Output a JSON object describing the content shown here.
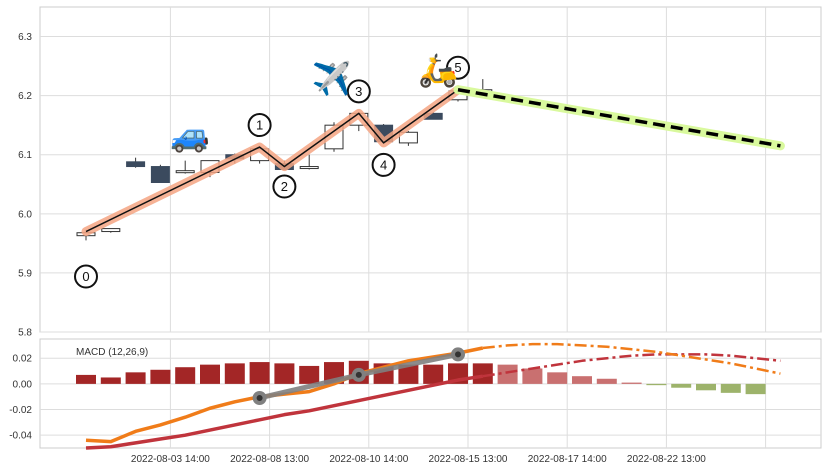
{
  "chart_data": [
    {
      "type": "candlestick",
      "ylim": [
        5.8,
        6.35
      ],
      "y_ticks": [
        5.8,
        5.9,
        6.0,
        6.1,
        6.2,
        6.3
      ],
      "grid": true,
      "candles": [
        {
          "i": 0,
          "open": 5.963,
          "high": 5.968,
          "low": 5.955,
          "close": 5.968
        },
        {
          "i": 1,
          "open": 5.97,
          "high": 5.975,
          "low": 5.968,
          "close": 5.975
        },
        {
          "i": 2,
          "open": 6.088,
          "high": 6.095,
          "low": 6.078,
          "close": 6.08
        },
        {
          "i": 3,
          "open": 6.08,
          "high": 6.083,
          "low": 6.053,
          "close": 6.053
        },
        {
          "i": 4,
          "open": 6.073,
          "high": 6.09,
          "low": 6.068,
          "close": 6.073
        },
        {
          "i": 5,
          "open": 6.07,
          "high": 6.09,
          "low": 6.062,
          "close": 6.09
        },
        {
          "i": 6,
          "open": 6.1,
          "high": 6.102,
          "low": 6.085,
          "close": 6.093
        },
        {
          "i": 7,
          "open": 6.09,
          "high": 6.114,
          "low": 6.085,
          "close": 6.11
        },
        {
          "i": 8,
          "open": 6.085,
          "high": 6.09,
          "low": 6.075,
          "close": 6.075
        },
        {
          "i": 9,
          "open": 6.08,
          "high": 6.1,
          "low": 6.075,
          "close": 6.08
        },
        {
          "i": 10,
          "open": 6.11,
          "high": 6.155,
          "low": 6.105,
          "close": 6.15
        },
        {
          "i": 11,
          "open": 6.15,
          "high": 6.172,
          "low": 6.14,
          "close": 6.17
        },
        {
          "i": 12,
          "open": 6.15,
          "high": 6.152,
          "low": 6.12,
          "close": 6.122
        },
        {
          "i": 13,
          "open": 6.12,
          "high": 6.14,
          "low": 6.115,
          "close": 6.138
        },
        {
          "i": 14,
          "open": 6.17,
          "high": 6.172,
          "low": 6.16,
          "close": 6.16
        },
        {
          "i": 15,
          "open": 6.193,
          "high": 6.215,
          "low": 6.19,
          "close": 6.208
        },
        {
          "i": 16,
          "open": 6.205,
          "high": 6.228,
          "low": 6.2,
          "close": 6.21
        }
      ],
      "wave_points": [
        {
          "label": "0",
          "i": 0,
          "price": 5.97
        },
        {
          "label": "1",
          "i": 7,
          "price": 6.113
        },
        {
          "label": "2",
          "i": 8,
          "price": 6.08
        },
        {
          "label": "3",
          "i": 11,
          "price": 6.17
        },
        {
          "label": "4",
          "i": 12,
          "price": 6.12
        },
        {
          "label": "5",
          "i": 15,
          "price": 6.21
        }
      ],
      "projection": {
        "from_i": 15,
        "from_price": 6.21,
        "to_i": 28,
        "to_price": 6.115
      },
      "icons": [
        {
          "name": "car-icon",
          "glyph": "🚙",
          "i": 4.2,
          "price": 6.115
        },
        {
          "name": "airplane-icon",
          "glyph": "✈️",
          "i": 9.9,
          "price": 6.21
        },
        {
          "name": "scooter-icon",
          "glyph": "🛵",
          "i": 14.2,
          "price": 6.225
        }
      ],
      "colors": {
        "up_fill": "#ffffff",
        "down_fill": "#3b4a5e",
        "wave_glow": "#f4a582",
        "projection_glow": "#d9f99d"
      }
    },
    {
      "type": "bar+line",
      "title": "MACD (12,26,9)",
      "ylim": [
        -0.05,
        0.035
      ],
      "y_ticks": [
        -0.04,
        -0.02,
        0.0,
        0.02
      ],
      "grid": true,
      "histogram": [
        0.007,
        0.005,
        0.009,
        0.011,
        0.013,
        0.015,
        0.016,
        0.017,
        0.016,
        0.014,
        0.017,
        0.018,
        0.016,
        0.015,
        0.015,
        0.016,
        0.016,
        0.015,
        0.012,
        0.009,
        0.006,
        0.004,
        0.001,
        -0.001,
        -0.003,
        -0.005,
        -0.007,
        -0.008
      ],
      "macd_line": [
        -0.044,
        -0.045,
        -0.037,
        -0.032,
        -0.026,
        -0.019,
        -0.014,
        -0.01,
        -0.008,
        -0.006,
        0.0,
        0.008,
        0.013,
        0.018,
        0.021,
        0.024,
        0.028
      ],
      "signal_line": [
        -0.05,
        -0.049,
        -0.046,
        -0.043,
        -0.04,
        -0.036,
        -0.032,
        -0.028,
        -0.024,
        -0.021,
        -0.017,
        -0.013,
        -0.009,
        -0.005,
        -0.001,
        0.003,
        0.006
      ],
      "macd_projection": [
        0.028,
        0.03,
        0.031,
        0.031,
        0.03,
        0.029,
        0.027,
        0.025,
        0.022,
        0.019,
        0.016,
        0.012,
        0.008
      ],
      "signal_projection": [
        0.006,
        0.009,
        0.012,
        0.015,
        0.018,
        0.02,
        0.022,
        0.023,
        0.023,
        0.023,
        0.022,
        0.02,
        0.018
      ],
      "highlight_points": [
        {
          "i": 7,
          "value": -0.011
        },
        {
          "i": 11,
          "value": 0.007
        },
        {
          "i": 15,
          "value": 0.023
        }
      ],
      "colors": {
        "hist_pos": "#a32626",
        "hist_pos_proj": "#c97070",
        "hist_neg_proj": "#9db36b",
        "macd": "#f07c19",
        "signal": "#c0343c",
        "highlight": "#808080"
      }
    }
  ],
  "x_axis": {
    "tick_labels": [
      {
        "i": 3,
        "label": "2022-08-03 14:00"
      },
      {
        "i": 7,
        "label": "2022-08-08 13:00"
      },
      {
        "i": 11,
        "label": "2022-08-10 14:00"
      },
      {
        "i": 15,
        "label": "2022-08-15 13:00"
      },
      {
        "i": 19,
        "label": "2022-08-17 14:00"
      },
      {
        "i": 23,
        "label": "2022-08-22 13:00"
      }
    ]
  }
}
